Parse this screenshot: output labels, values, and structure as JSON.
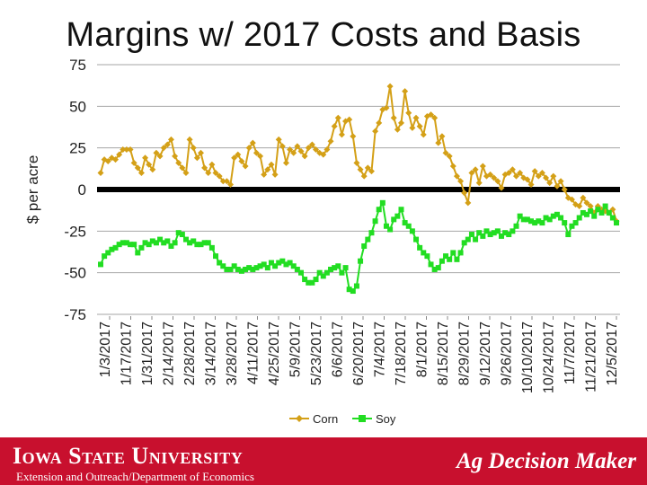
{
  "page": {
    "title": "Margins w/ 2017 Costs and Basis",
    "footer_brand": "Iowa State University",
    "footer_dept": "Extension and Outreach/Department of Economics",
    "footer_right": "Ag Decision Maker",
    "footer_color": "#c8102e"
  },
  "chart_data": {
    "type": "line",
    "title": "Margins w/ 2017 Costs and Basis",
    "ylabel": "$ per acre",
    "xlabel": "",
    "ylim": [
      -75,
      75
    ],
    "yticks": [
      75,
      50,
      25,
      0,
      -25,
      -50,
      -75
    ],
    "grid": true,
    "legend": "bottom",
    "zero_line": true,
    "x_tick_labels": [
      "1/3/2017",
      "1/17/2017",
      "1/31/2017",
      "2/14/2017",
      "2/28/2017",
      "3/14/2017",
      "3/28/2017",
      "4/11/2017",
      "4/25/2017",
      "5/9/2017",
      "5/23/2017",
      "6/6/2017",
      "6/20/2017",
      "7/4/2017",
      "7/18/2017",
      "8/1/2017",
      "8/15/2017",
      "8/29/2017",
      "9/12/2017",
      "9/26/2017",
      "10/10/2017",
      "10/24/2017",
      "11/7/2017",
      "11/21/2017",
      "12/5/2017"
    ],
    "series": [
      {
        "name": "Corn",
        "color": "#d4a017",
        "marker": "diamond",
        "values": [
          10,
          18,
          17,
          19,
          18,
          21,
          24,
          24,
          24,
          16,
          13,
          10,
          19,
          15,
          12,
          22,
          20,
          25,
          27,
          30,
          20,
          16,
          13,
          10,
          30,
          25,
          19,
          22,
          13,
          10,
          15,
          10,
          8,
          5,
          5,
          3,
          19,
          21,
          17,
          14,
          25,
          28,
          22,
          20,
          9,
          12,
          15,
          9,
          30,
          26,
          16,
          24,
          22,
          26,
          23,
          20,
          25,
          27,
          24,
          22,
          21,
          24,
          29,
          38,
          43,
          33,
          41,
          42,
          32,
          16,
          12,
          8,
          13,
          11,
          35,
          40,
          48,
          49,
          62,
          43,
          36,
          40,
          59,
          46,
          37,
          43,
          38,
          33,
          44,
          45,
          43,
          28,
          32,
          22,
          20,
          14,
          8,
          5,
          -2,
          -8,
          10,
          12,
          4,
          14,
          8,
          9,
          7,
          5,
          1,
          9,
          10,
          12,
          8,
          10,
          7,
          6,
          3,
          11,
          8,
          10,
          7,
          4,
          8,
          2,
          5,
          0,
          -5,
          -6,
          -9,
          -10,
          -5,
          -8,
          -10,
          -14,
          -10,
          -12,
          -13,
          -14,
          -12,
          -19
        ]
      },
      {
        "name": "Soy",
        "color": "#22dd22",
        "marker": "square",
        "values": [
          -45,
          -40,
          -38,
          -36,
          -35,
          -33,
          -32,
          -32,
          -33,
          -33,
          -38,
          -35,
          -32,
          -33,
          -31,
          -32,
          -30,
          -32,
          -31,
          -34,
          -32,
          -26,
          -27,
          -30,
          -32,
          -31,
          -33,
          -33,
          -32,
          -32,
          -35,
          -40,
          -44,
          -46,
          -48,
          -48,
          -46,
          -48,
          -49,
          -48,
          -47,
          -48,
          -47,
          -46,
          -45,
          -47,
          -44,
          -46,
          -44,
          -43,
          -45,
          -44,
          -46,
          -48,
          -50,
          -54,
          -56,
          -56,
          -54,
          -50,
          -52,
          -50,
          -48,
          -47,
          -46,
          -50,
          -47,
          -60,
          -61,
          -58,
          -43,
          -34,
          -30,
          -26,
          -19,
          -12,
          -8,
          -22,
          -24,
          -18,
          -16,
          -12,
          -20,
          -22,
          -25,
          -30,
          -35,
          -38,
          -40,
          -45,
          -48,
          -47,
          -43,
          -40,
          -42,
          -38,
          -42,
          -38,
          -32,
          -30,
          -27,
          -30,
          -26,
          -28,
          -25,
          -27,
          -26,
          -25,
          -28,
          -26,
          -27,
          -25,
          -22,
          -16,
          -18,
          -18,
          -19,
          -20,
          -19,
          -20,
          -17,
          -18,
          -16,
          -15,
          -17,
          -20,
          -27,
          -22,
          -20,
          -17,
          -14,
          -15,
          -13,
          -16,
          -12,
          -14,
          -10,
          -14,
          -17,
          -20
        ]
      }
    ]
  }
}
